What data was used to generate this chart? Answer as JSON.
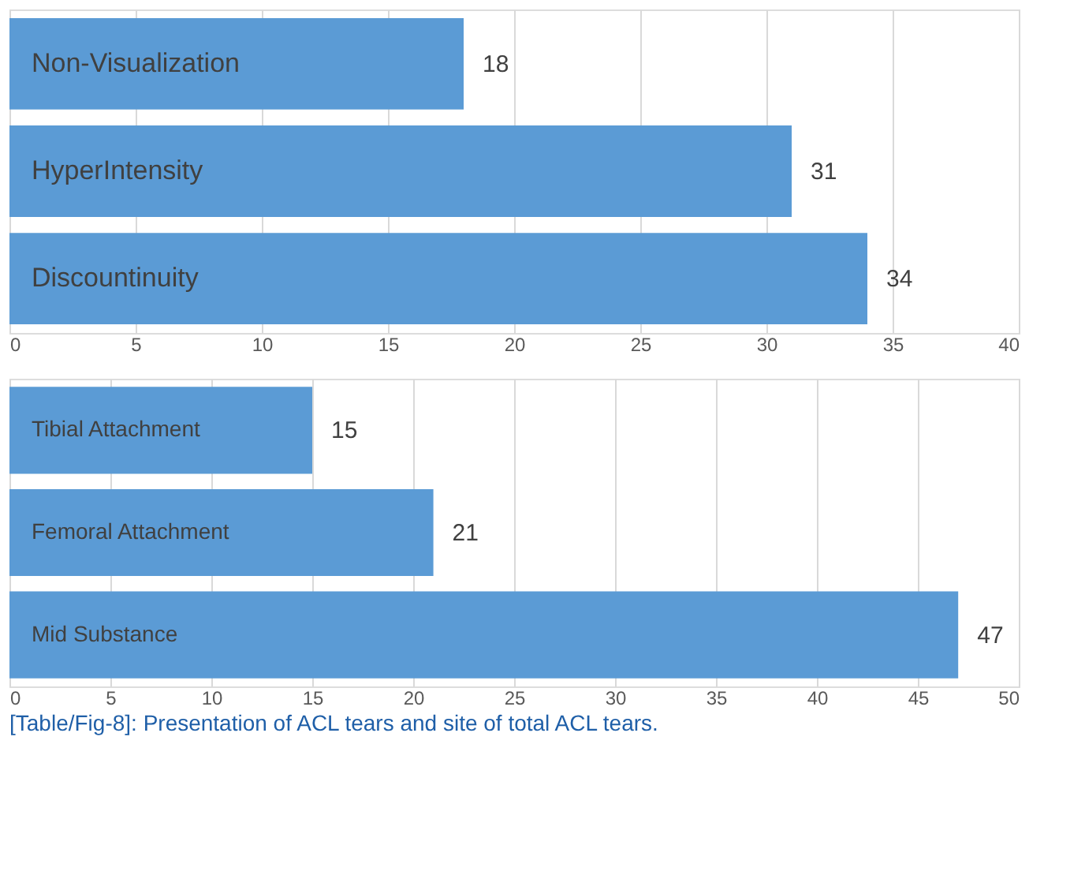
{
  "chart_data": [
    {
      "type": "bar",
      "orientation": "horizontal",
      "categories": [
        "Non-Visualization",
        "HyperIntensity",
        "Discountinuity"
      ],
      "values": [
        18,
        31,
        34
      ],
      "color": "#5b9bd5",
      "xlim": [
        0,
        40
      ],
      "xticks": [
        0,
        5,
        10,
        15,
        20,
        25,
        30,
        35,
        40
      ],
      "grid": "x",
      "data_labels": true,
      "tick_labels": "x"
    },
    {
      "type": "bar",
      "orientation": "horizontal",
      "categories": [
        "Tibial Attachment",
        "Femoral Attachment",
        "Mid Substance"
      ],
      "values": [
        15,
        21,
        47
      ],
      "color": "#5b9bd5",
      "xlim": [
        0,
        50
      ],
      "xticks": [
        0,
        5,
        10,
        15,
        20,
        25,
        30,
        35,
        40,
        45,
        50
      ],
      "grid": "x",
      "data_labels": true,
      "tick_labels": "x",
      "annotations": [
        "[Table/Fig-8]: Presentation of ACL tears and site of total ACL tears."
      ]
    }
  ]
}
